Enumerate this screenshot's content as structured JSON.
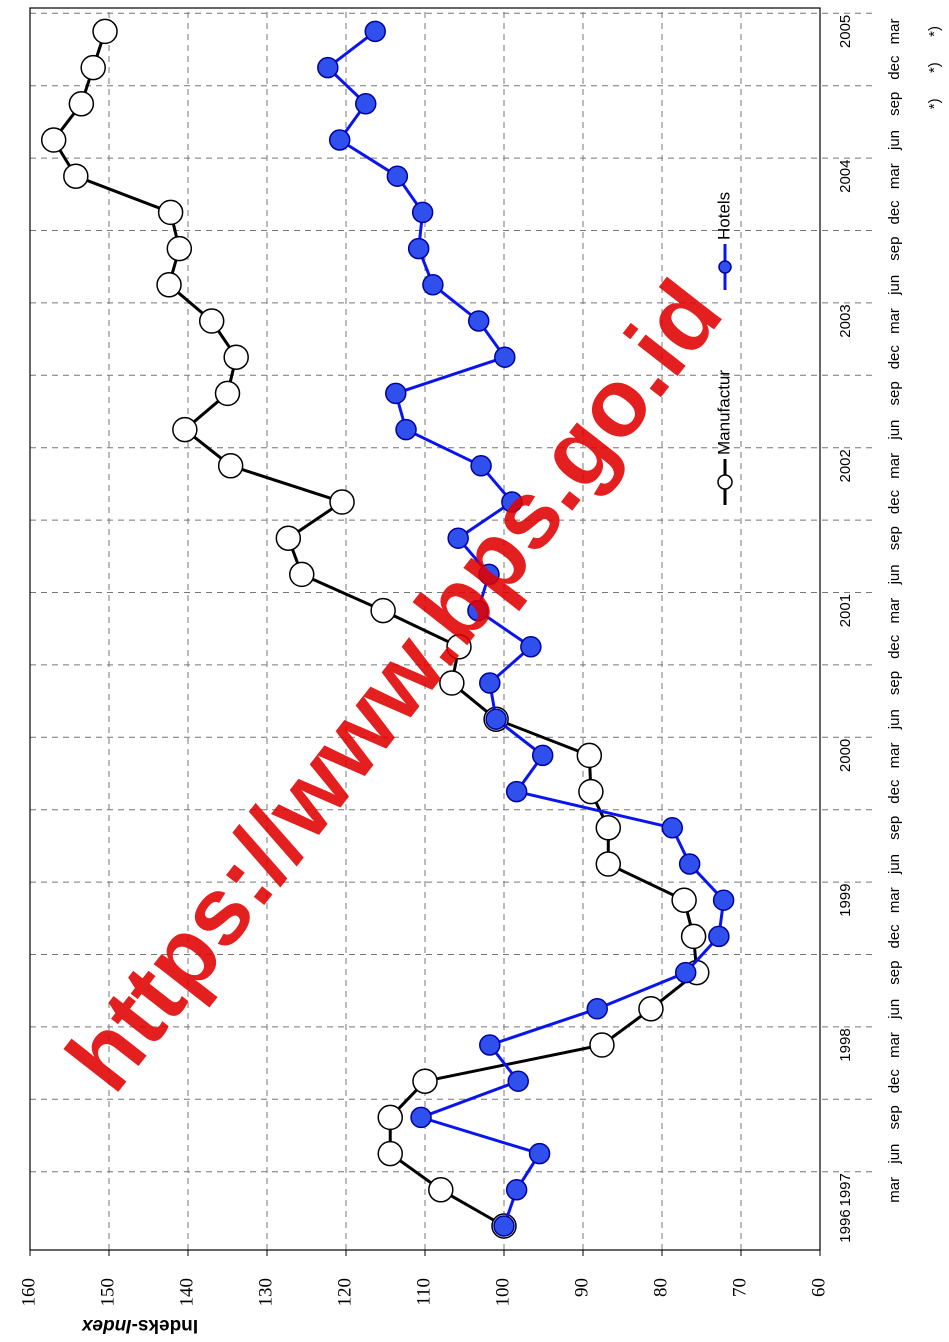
{
  "chart_data": {
    "type": "line",
    "y_label": "Indeks-",
    "y_label_en": "Index",
    "watermark": "https://www.bps.go.id",
    "categories": [
      null,
      "mar",
      "jun",
      "sep",
      "dec",
      "mar",
      "jun",
      "sep",
      "dec",
      "mar",
      "jun",
      "sep",
      "dec",
      "mar",
      "jun",
      "sep",
      "dec",
      "mar",
      "jun",
      "sep",
      "dec",
      "mar",
      "jun",
      "sep",
      "dec",
      "mar",
      "jun",
      "sep",
      "dec",
      "mar",
      "jun",
      "sep",
      "dec",
      "mar"
    ],
    "year_labels": [
      "1996",
      "1997",
      null,
      null,
      null,
      "1998",
      null,
      null,
      null,
      "1999",
      null,
      null,
      null,
      "2000",
      null,
      null,
      null,
      "2001",
      null,
      null,
      null,
      "2002",
      null,
      null,
      null,
      "2003",
      null,
      null,
      null,
      "2004",
      null,
      null,
      null,
      "2005"
    ],
    "note_labels": [
      null,
      null,
      null,
      null,
      null,
      null,
      null,
      null,
      null,
      null,
      null,
      null,
      null,
      null,
      null,
      null,
      null,
      null,
      null,
      null,
      null,
      null,
      null,
      null,
      null,
      null,
      null,
      null,
      null,
      null,
      null,
      "*)",
      "*)",
      "*)"
    ],
    "series": [
      {
        "name": "Manufactur",
        "color": "#000000",
        "marker_fill": "#ffffff",
        "values": [
          100,
          108,
          114.4,
          114.4,
          110,
          87.6,
          81.4,
          75.6,
          76,
          77.2,
          86.8,
          86.8,
          89,
          89.2,
          101,
          106.6,
          105.7,
          115.3,
          125.6,
          127.3,
          120.5,
          134.6,
          140.4,
          135,
          133.9,
          137,
          142.4,
          141.1,
          142.2,
          154.2,
          157,
          153.5,
          152,
          150.5
        ]
      },
      {
        "name": "Hotels",
        "color": "#0a14f0",
        "marker_fill": "#3050ee",
        "values": [
          100,
          98.4,
          95.5,
          110.5,
          98.2,
          101.8,
          88.2,
          77,
          72.8,
          72.2,
          76.5,
          78.7,
          98.4,
          95.1,
          101,
          101.8,
          96.6,
          103.3,
          101.9,
          105.8,
          99,
          102.9,
          112.4,
          113.7,
          99.9,
          103.2,
          109,
          110.8,
          110.3,
          113.5,
          120.8,
          117.5,
          122.3,
          116.3
        ]
      }
    ],
    "ylim": [
      60,
      160
    ],
    "yticks": [
      60,
      70,
      80,
      90,
      100,
      110,
      120,
      130,
      140,
      150,
      160
    ],
    "grid": true,
    "legend": "lower right"
  }
}
